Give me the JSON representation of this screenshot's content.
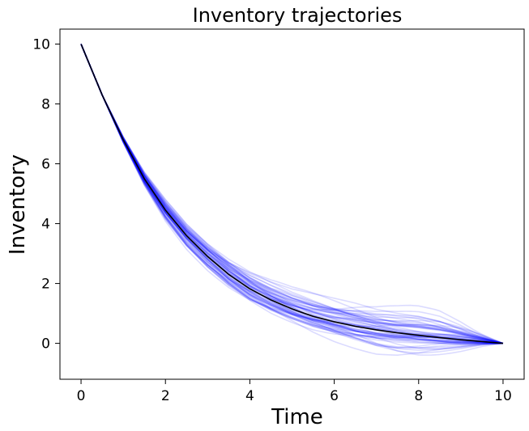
{
  "chart_data": {
    "type": "line",
    "title": "Inventory trajectories",
    "xlabel": "Time",
    "ylabel": "Inventory",
    "xlim": [
      -0.5,
      10.5
    ],
    "ylim": [
      -1.2,
      10.5
    ],
    "xticks": [
      0,
      2,
      4,
      6,
      8,
      10
    ],
    "yticks": [
      0,
      2,
      4,
      6,
      8,
      10
    ],
    "grid": false,
    "colors": {
      "samples": "#0000ff",
      "mean": "#000000",
      "frame": "#000000"
    },
    "series": [
      {
        "role": "mean trajectory",
        "x": [
          0,
          0.5,
          1,
          1.5,
          2,
          2.5,
          3,
          3.5,
          4,
          4.5,
          5,
          5.5,
          6,
          6.5,
          7,
          7.5,
          8,
          8.5,
          9,
          9.5,
          10
        ],
        "y": [
          10.0,
          8.3,
          6.8,
          5.5,
          4.45,
          3.6,
          2.9,
          2.3,
          1.82,
          1.45,
          1.15,
          0.9,
          0.72,
          0.57,
          0.45,
          0.35,
          0.27,
          0.19,
          0.12,
          0.06,
          0.0
        ]
      },
      {
        "role": "sample trajectories envelope",
        "x": [
          0,
          0.5,
          1,
          1.5,
          2,
          2.5,
          3,
          3.5,
          4,
          4.5,
          5,
          5.5,
          6,
          6.5,
          7,
          7.5,
          8,
          8.5,
          9,
          9.5,
          10
        ],
        "y_upper": [
          10.0,
          8.3,
          6.95,
          5.8,
          4.9,
          4.1,
          3.5,
          3.0,
          2.6,
          2.3,
          2.05,
          1.9,
          1.75,
          1.6,
          1.4,
          1.3,
          1.25,
          1.1,
          0.8,
          0.4,
          0.0
        ],
        "y_lower": [
          10.0,
          8.3,
          6.65,
          5.2,
          4.0,
          3.05,
          2.3,
          1.65,
          1.1,
          0.7,
          0.4,
          0.1,
          -0.15,
          -0.35,
          -0.55,
          -0.62,
          -0.58,
          -0.45,
          -0.3,
          -0.12,
          0.0
        ]
      }
    ]
  }
}
